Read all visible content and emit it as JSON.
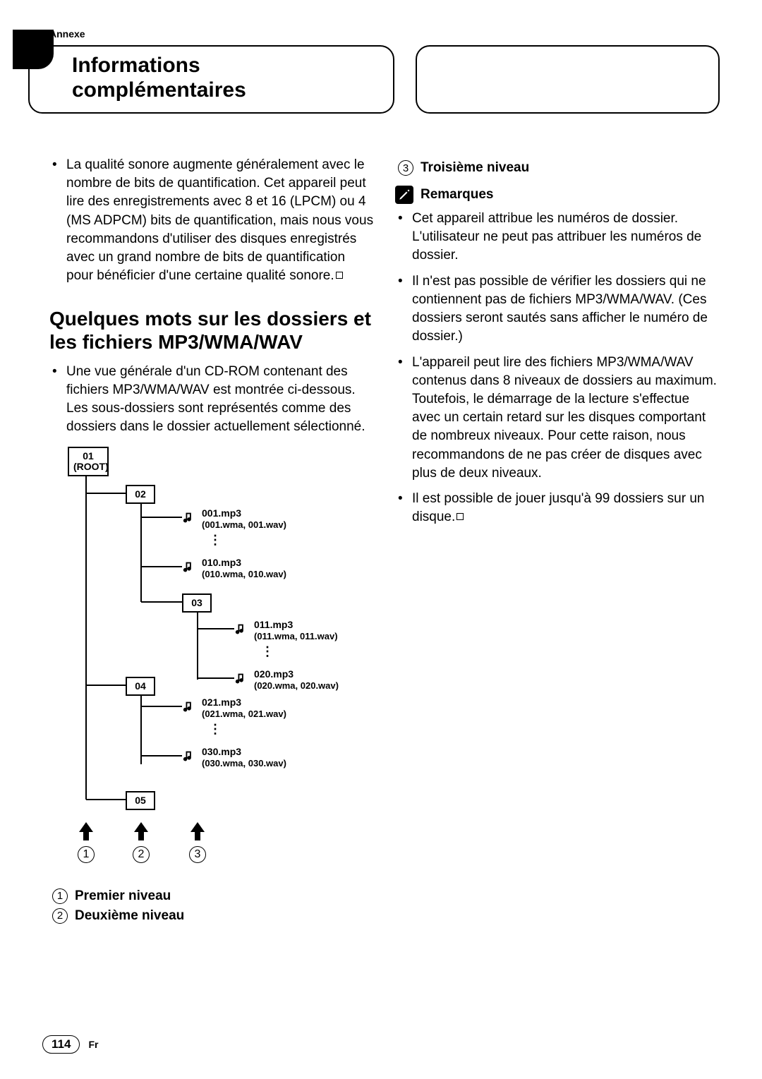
{
  "annexe_label": "Annexe",
  "title_box": "Informations complémentaires",
  "bullet_left_1": "La qualité sonore augmente généralement avec le nombre de bits de quantification. Cet appareil peut lire des enregistrements avec 8 et 16 (LPCM) ou 4 (MS ADPCM) bits de quantification, mais nous vous recommandons d'utiliser des disques enregistrés avec un grand nombre de bits de quantification pour bénéficier d'une certaine qualité sonore.",
  "section_heading": "Quelques mots sur les dossiers et les fichiers MP3/WMA/WAV",
  "bullet_left_2": "Une vue générale d'un CD-ROM contenant des fichiers MP3/WMA/WAV est montrée ci-dessous. Les sous-dossiers sont représentés comme des dossiers dans le dossier actuellement sélectionné.",
  "tree": {
    "folders": {
      "root": "01\n(ROOT)",
      "f02": "02",
      "f03": "03",
      "f04": "04",
      "f05": "05"
    },
    "files": {
      "f001_a": "001.mp3",
      "f001_b": "(001.wma, 001.wav)",
      "f010_a": "010.mp3",
      "f010_b": "(010.wma, 010.wav)",
      "f011_a": "011.mp3",
      "f011_b": "(011.wma, 011.wav)",
      "f020_a": "020.mp3",
      "f020_b": "(020.wma, 020.wav)",
      "f021_a": "021.mp3",
      "f021_b": "(021.wma, 021.wav)",
      "f030_a": "030.mp3",
      "f030_b": "(030.wma, 030.wav)"
    },
    "level_marks": {
      "m1": "1",
      "m2": "2",
      "m3": "3"
    }
  },
  "levels": {
    "l1": "Premier niveau",
    "l2": "Deuxième niveau",
    "l3": "Troisième niveau"
  },
  "remarques_label": "Remarques",
  "remarques": {
    "r1": "Cet appareil attribue les numéros de dossier. L'utilisateur ne peut pas attribuer les numéros de dossier.",
    "r2": "Il n'est pas possible de vérifier les dossiers qui ne contiennent pas de fichiers MP3/WMA/WAV. (Ces dossiers seront sautés sans afficher le numéro de dossier.)",
    "r3": "L'appareil peut lire des fichiers MP3/WMA/WAV contenus dans 8 niveaux de dossiers au maximum. Toutefois, le démarrage de la lecture s'effectue avec un certain retard sur les disques comportant de nombreux niveaux. Pour cette raison, nous recommandons de ne pas créer de disques avec plus de deux niveaux.",
    "r4": "Il est possible de jouer jusqu'à 99 dossiers sur un disque."
  },
  "page_number": "114",
  "lang_code": "Fr",
  "colors": {
    "text": "#000000",
    "bg": "#ffffff"
  }
}
